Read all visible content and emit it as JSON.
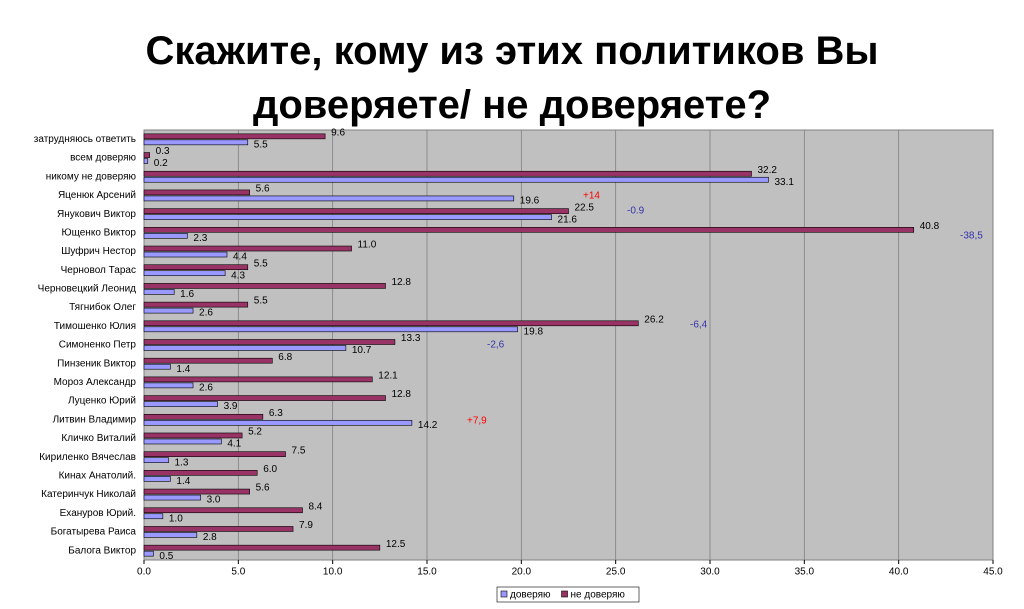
{
  "chart_data": {
    "type": "barh",
    "title": "Скажите, кому из этих политиков Вы доверяете/ не доверяете?",
    "categories": [
      "затрудняюсь ответить",
      "всем доверяю",
      "никому не доверяю",
      "Яценюк Арсений",
      "Янукович Виктор",
      "Ющенко Виктор",
      "Шуфрич Нестор",
      "Черновол Тарас",
      "Черновецкий Леонид",
      "Тягнибок Олег",
      "Тимошенко Юлия",
      "Симоненко Петр",
      "Пинзеник Виктор",
      "Мороз Александр",
      "Луценко Юрий",
      "Литвин Владимир",
      "Кличко Виталий",
      "Кириленко Вячеслав",
      "Кинах Анатолий.",
      "Катеринчук Николай",
      "Ехануров Юрий.",
      "Богатырева Раиса",
      "Балога Виктор"
    ],
    "series": [
      {
        "name": "доверяю",
        "color": "#9999ff",
        "values": [
          5.5,
          0.2,
          33.1,
          19.6,
          21.6,
          2.3,
          4.4,
          4.3,
          1.6,
          2.6,
          19.8,
          10.7,
          1.4,
          2.6,
          3.9,
          14.2,
          4.1,
          1.3,
          1.4,
          3.0,
          1.0,
          2.8,
          0.5
        ],
        "value_labels": [
          "5.5",
          "0.2",
          "33.1",
          "19.6",
          "21.6",
          "2.3",
          "4.4",
          "4.3",
          "1.6",
          "2.6",
          "19.8",
          "10.7",
          "1.4",
          "2.6",
          "3.9",
          "14.2",
          "4.1",
          "1.3",
          "1.4",
          "3.0",
          "1.0",
          "2.8",
          "0.5"
        ]
      },
      {
        "name": "не доверяю",
        "color": "#993366",
        "values": [
          9.6,
          0.3,
          32.2,
          5.6,
          22.5,
          40.8,
          11.0,
          5.5,
          12.8,
          5.5,
          26.2,
          13.3,
          6.8,
          12.1,
          12.8,
          6.3,
          5.2,
          7.5,
          6.0,
          5.6,
          8.4,
          7.9,
          12.5
        ],
        "value_labels": [
          "9.6",
          "0.3",
          "32.2",
          "5.6",
          "22.5",
          "40.8",
          "11.0",
          "5.5",
          "12.8",
          "5.5",
          "26.2",
          "13.3",
          "6.8",
          "12.1",
          "12.8",
          "6.3",
          "5.2",
          "7.5",
          "6.0",
          "5.6",
          "8.4",
          "7.9",
          "12.5"
        ]
      }
    ],
    "xlim": [
      0,
      45
    ],
    "xticks": [
      {
        "value": 0,
        "label": "0.0"
      },
      {
        "value": 5,
        "label": "5.0"
      },
      {
        "value": 10,
        "label": "10.0"
      },
      {
        "value": 15,
        "label": "15.0"
      },
      {
        "value": 20,
        "label": "20.0"
      },
      {
        "value": 25,
        "label": "25.0"
      },
      {
        "value": 30,
        "label": "30.0"
      },
      {
        "value": 35,
        "label": "35.0"
      },
      {
        "value": 40,
        "label": "40.0"
      },
      {
        "value": 45,
        "label": "45.0"
      }
    ],
    "grid": true,
    "legend": "bottom",
    "annotations": [
      {
        "text": "+14",
        "color": "#ff0000"
      },
      {
        "text": "-0.9",
        "color": "#3333aa"
      },
      {
        "text": "-38,5",
        "color": "#3333aa"
      },
      {
        "text": "-6,4",
        "color": "#3333aa"
      },
      {
        "text": "-2,6",
        "color": "#3333aa"
      },
      {
        "text": "+7,9",
        "color": "#ff0000"
      }
    ]
  }
}
